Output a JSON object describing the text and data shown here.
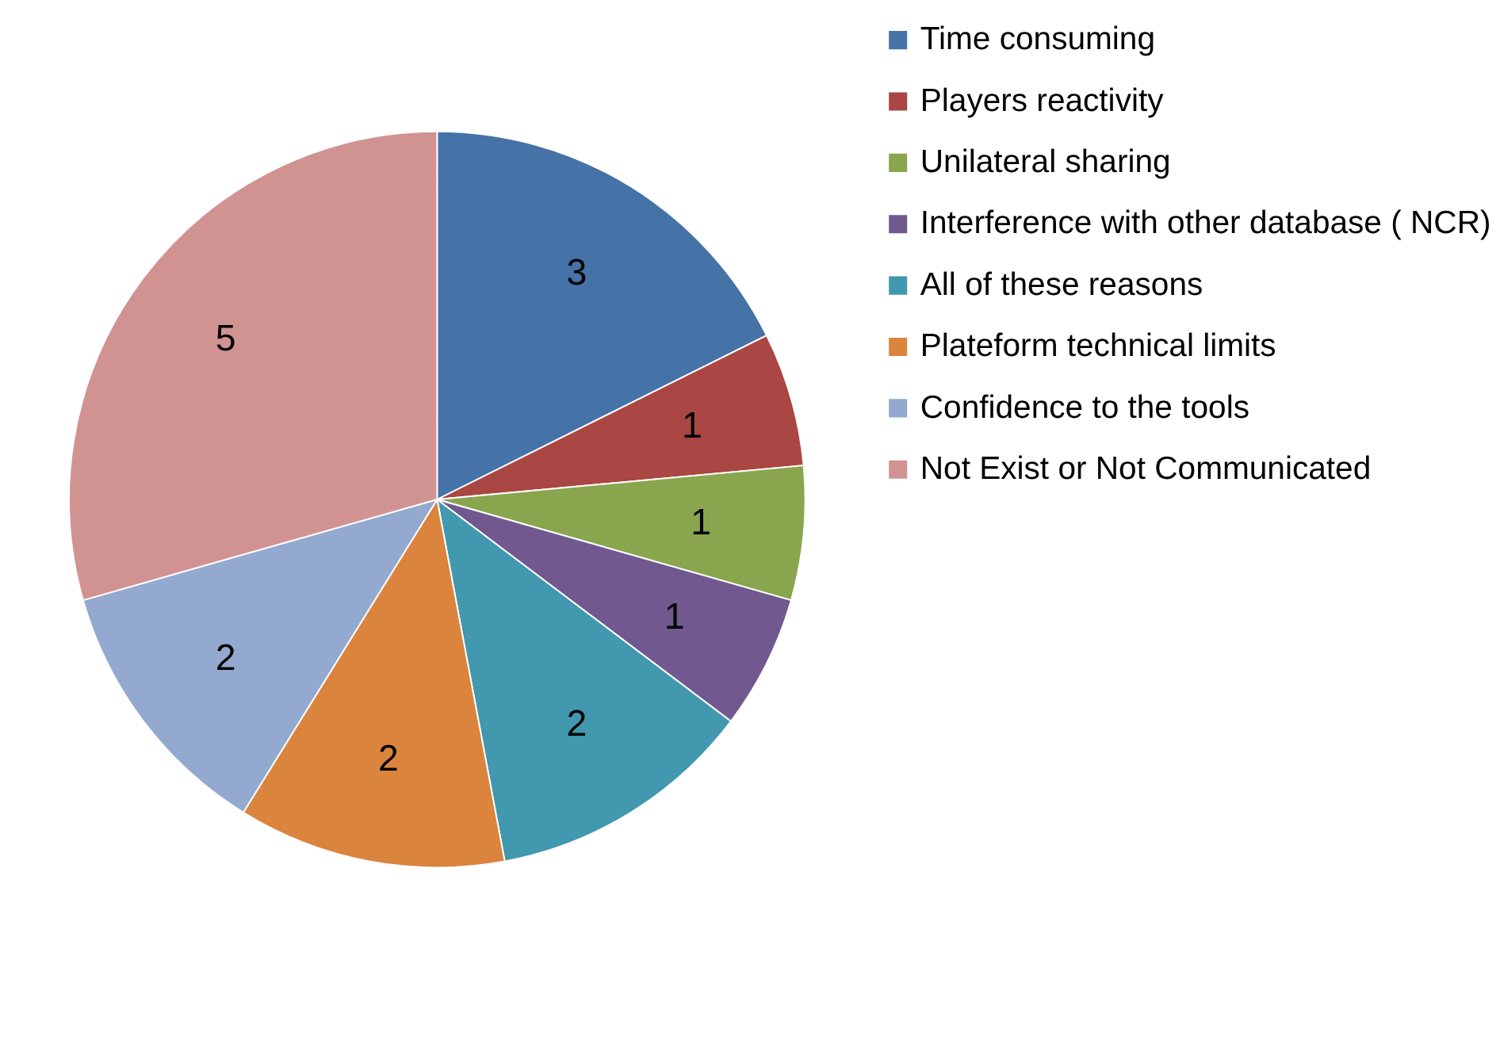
{
  "chart_data": {
    "type": "pie",
    "categories": [
      "Time consuming",
      "Players reactivity",
      "Unilateral sharing",
      " Interference with other database ( NCR)",
      "All of these reasons",
      "Plateform technical limits",
      "Confidence to the tools",
      "Not Exist or Not Communicated"
    ],
    "values": [
      3,
      1,
      1,
      1,
      2,
      2,
      2,
      5
    ],
    "colors": [
      "#4572a7",
      "#aa4643",
      "#89a54e",
      "#71588f",
      "#4198af",
      "#db843d",
      "#93a9cf",
      "#d19392"
    ],
    "data_labels": true,
    "legend": "right"
  }
}
